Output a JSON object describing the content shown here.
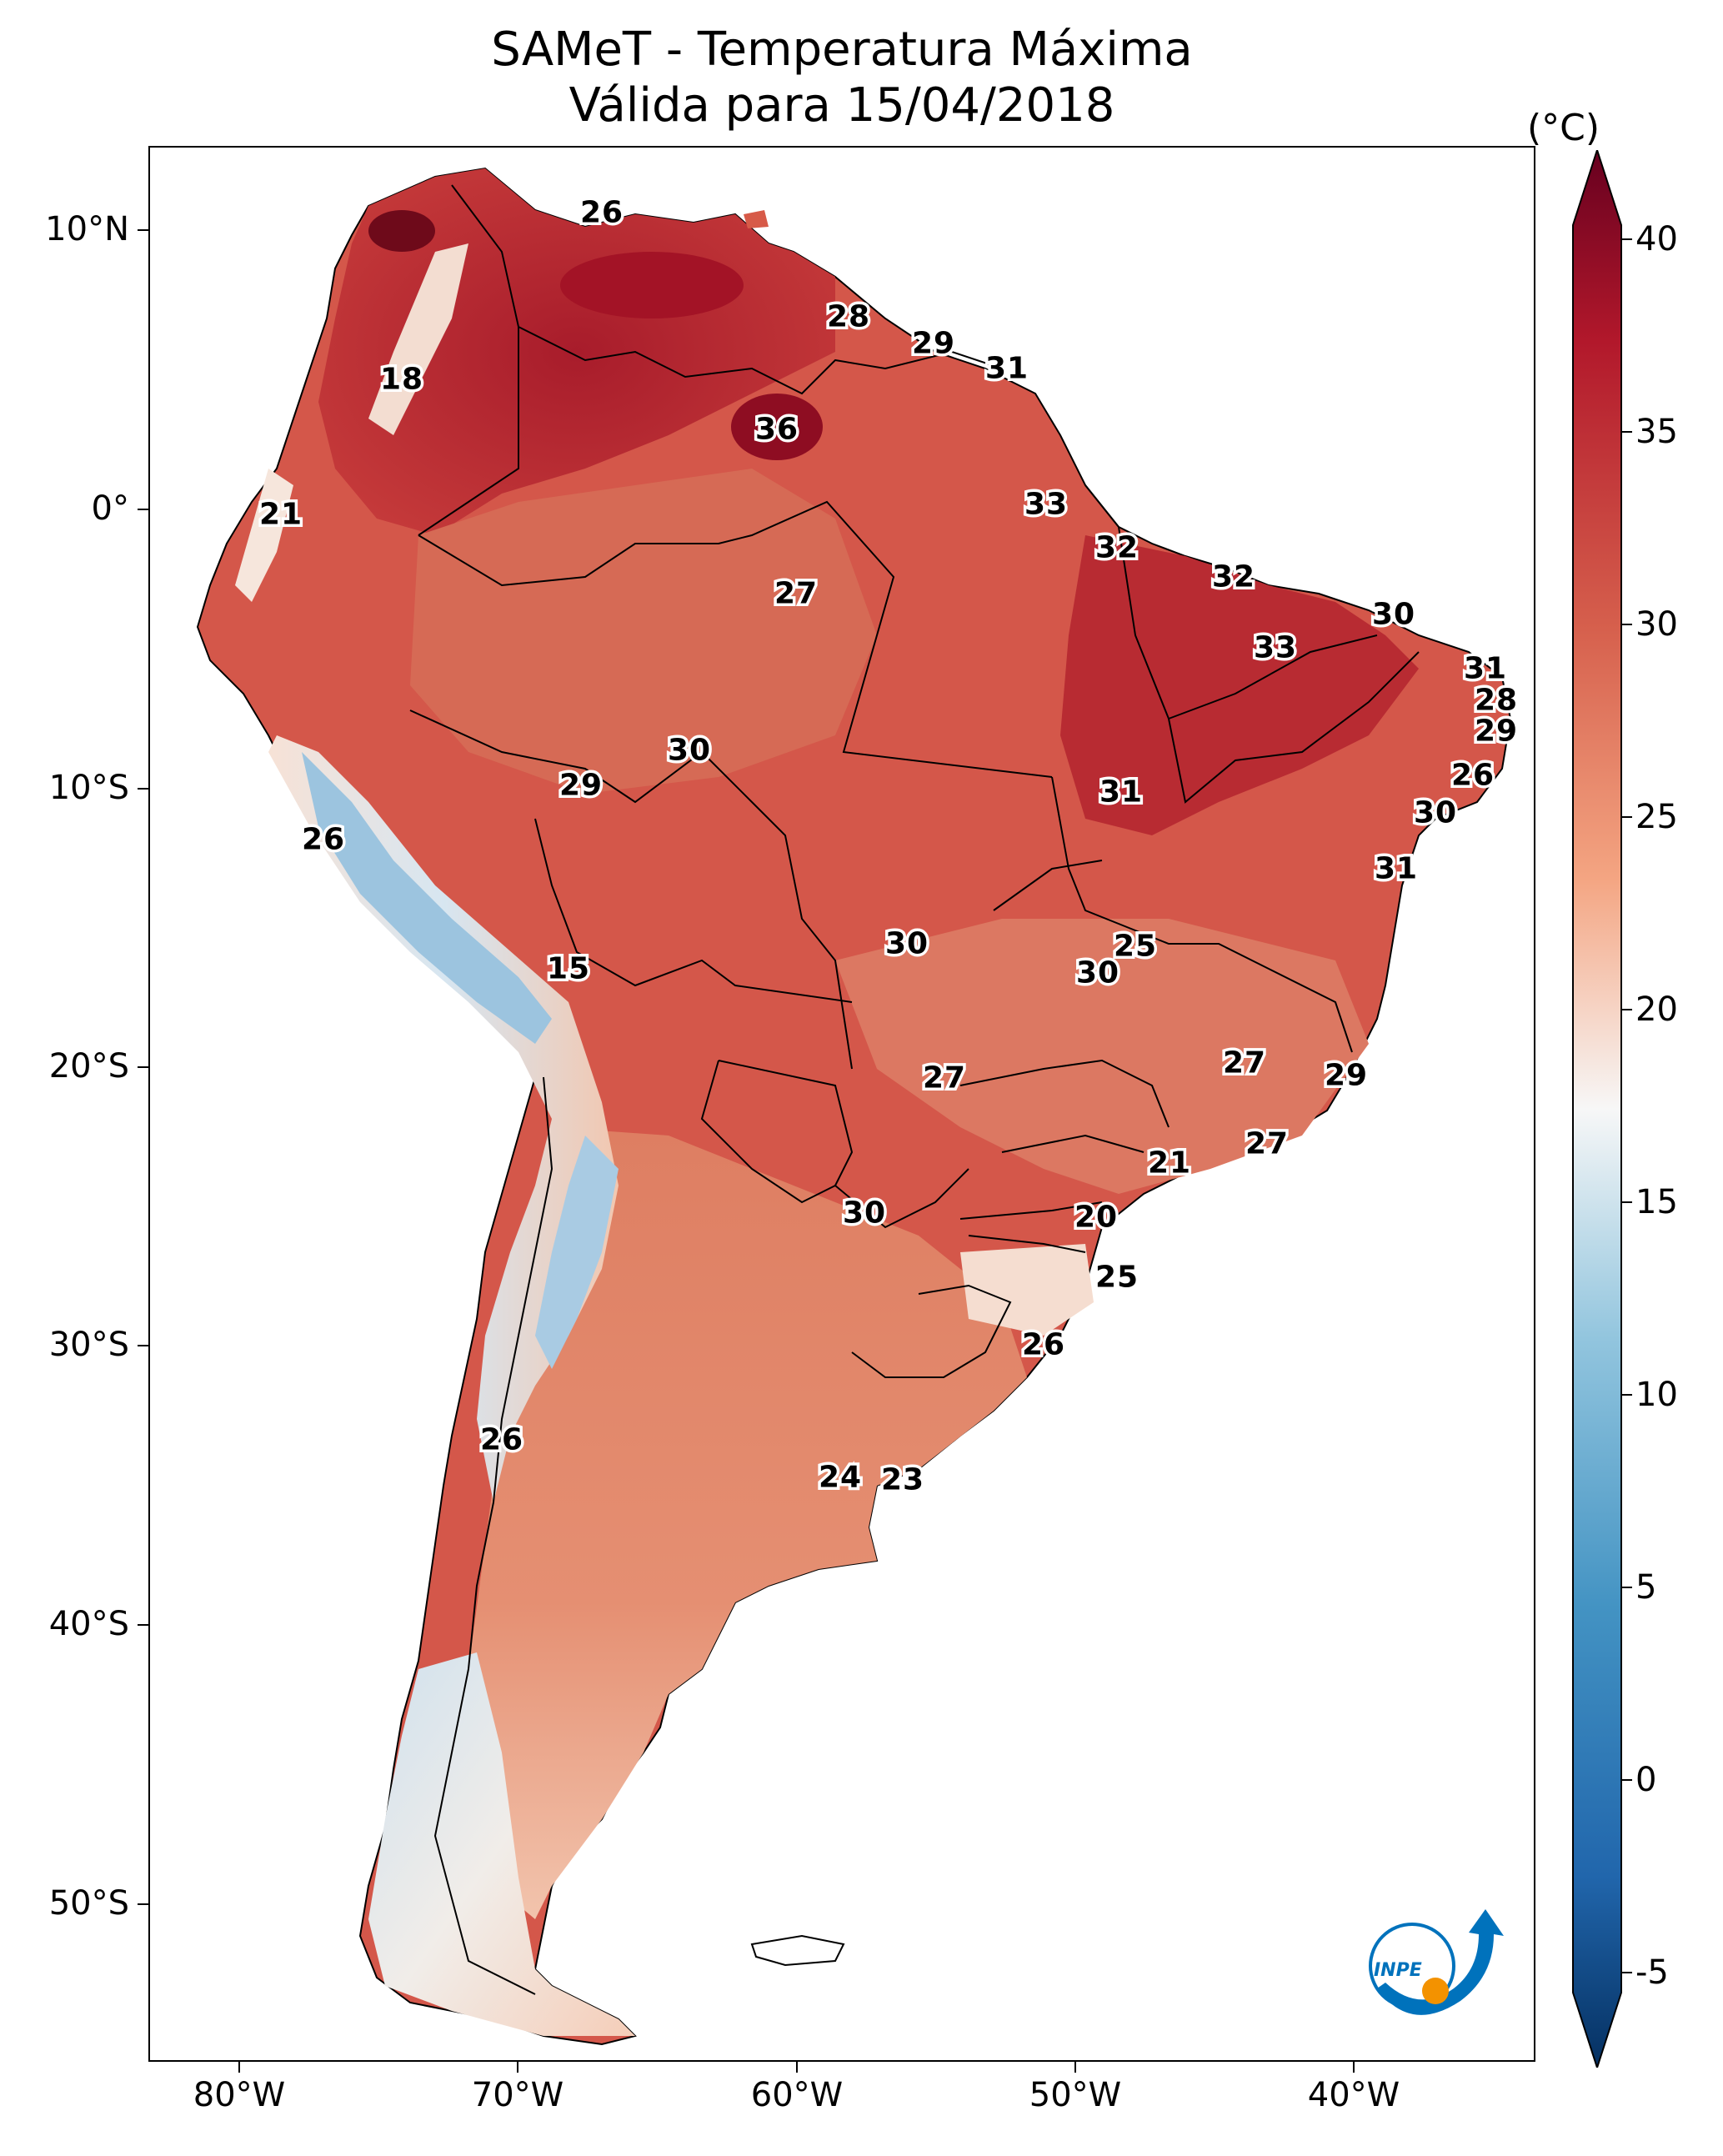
{
  "title_line1": "SAMeT - Temperatura Máxima",
  "title_line2": "Válida para 15/04/2018",
  "latitude_labels": [
    "10°N",
    "0°",
    "10°S",
    "20°S",
    "30°S",
    "40°S",
    "50°S"
  ],
  "longitude_labels": [
    "80°W",
    "70°W",
    "60°W",
    "50°W",
    "40°W"
  ],
  "colorbar": {
    "unit": "(°C)",
    "ticks": [
      "40",
      "35",
      "30",
      "25",
      "20",
      "15",
      "10",
      "5",
      "0",
      "-5"
    ],
    "colormap": "RdBu_r",
    "range": [
      -7,
      41
    ]
  },
  "temperature_labels": [
    "26",
    "18",
    "28",
    "29",
    "31",
    "36",
    "21",
    "33",
    "32",
    "32",
    "27",
    "30",
    "33",
    "31",
    "28",
    "29",
    "30",
    "29",
    "26",
    "31",
    "26",
    "30",
    "31",
    "15",
    "30",
    "25",
    "30",
    "27",
    "27",
    "29",
    "21",
    "27",
    "30",
    "20",
    "25",
    "26",
    "26",
    "24",
    "23"
  ],
  "logo_text": "INPE",
  "colors": {
    "hot_dark": "#8b0a1e",
    "hot": "#c8393a",
    "warm": "#e07a5f",
    "mild": "#f3b49a",
    "neutral": "#f7f0ec",
    "cool": "#c6dcec",
    "cold": "#5b9bc9",
    "logo_blue": "#0072bc",
    "logo_orange": "#f39200"
  }
}
